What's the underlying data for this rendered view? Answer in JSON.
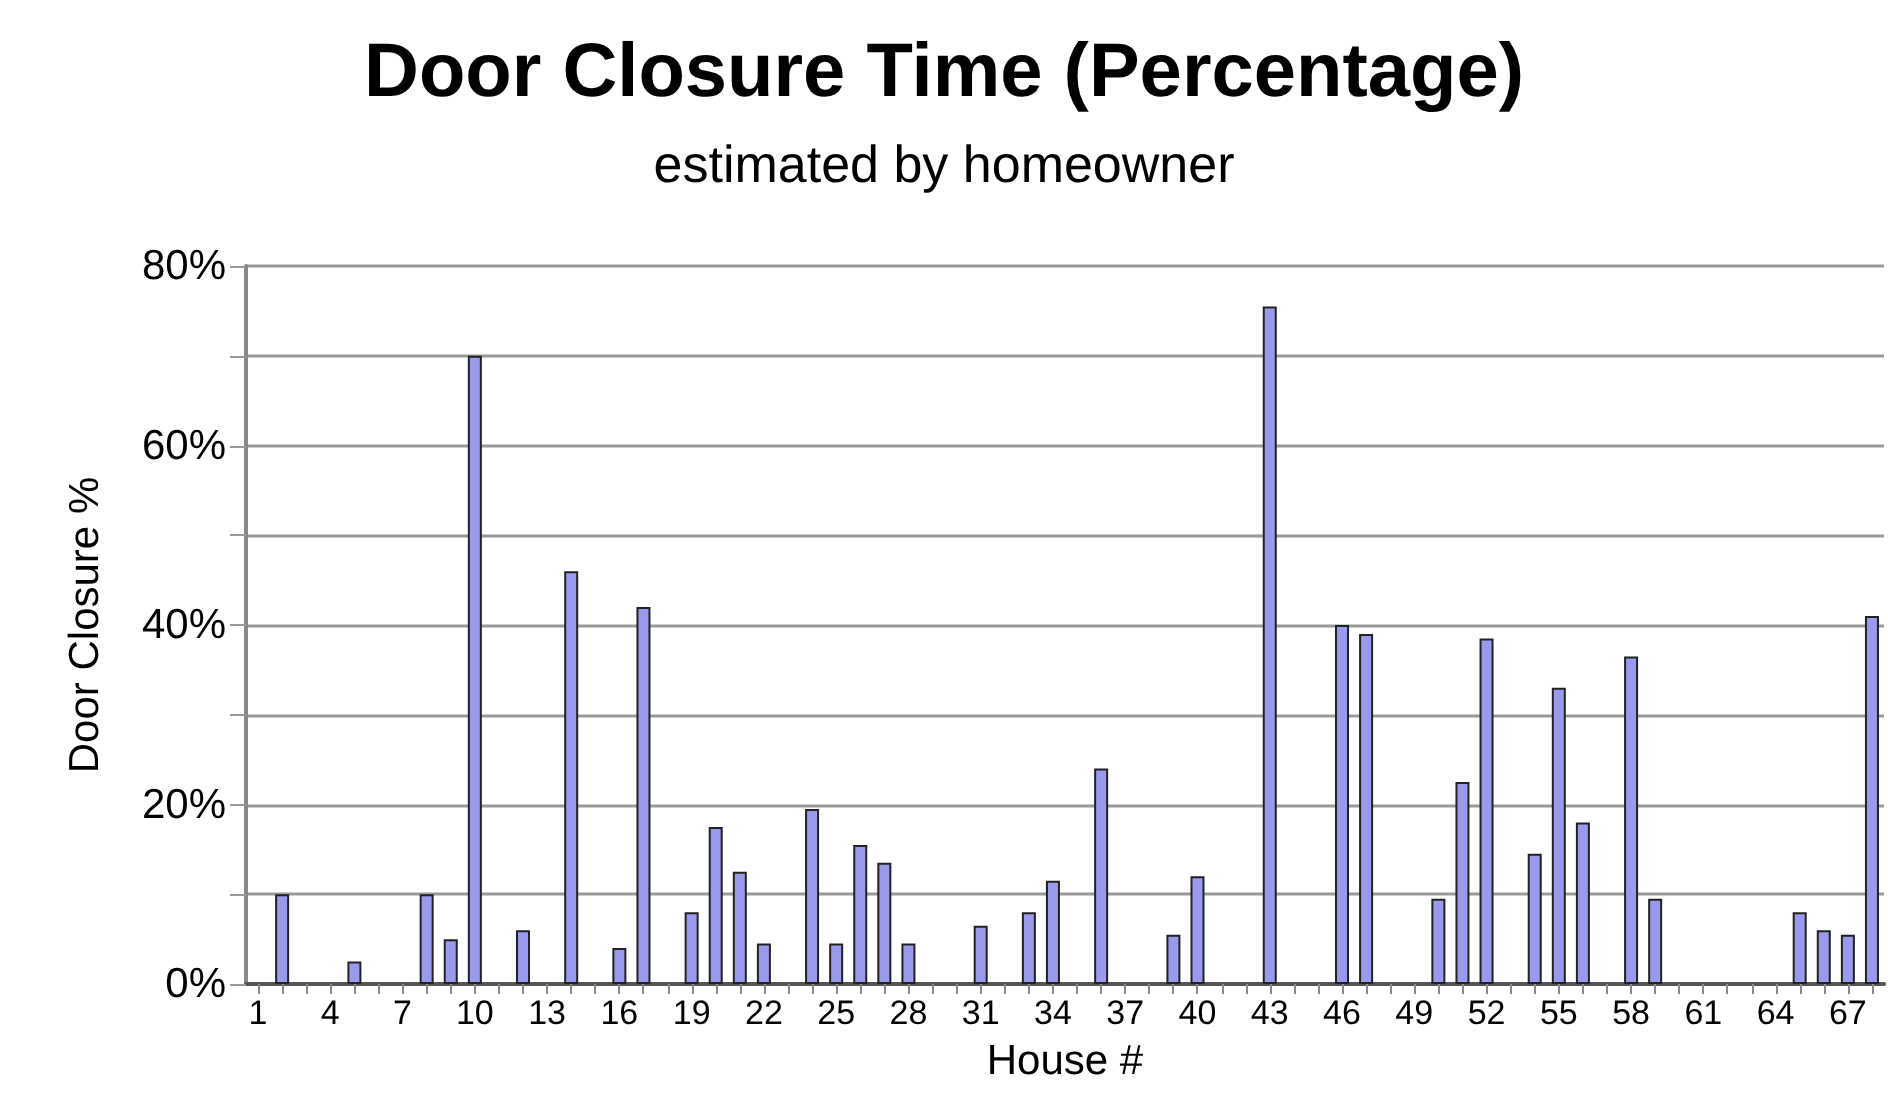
{
  "chart_data": {
    "type": "bar",
    "title": "Door Closure Time (Percentage)",
    "subtitle": "estimated by homeowner",
    "xlabel": "House #",
    "ylabel": "Door Closure %",
    "categories": [
      "1",
      null,
      null,
      "4",
      null,
      null,
      "7",
      null,
      null,
      "10",
      null,
      null,
      "13",
      null,
      null,
      "16",
      null,
      null,
      "19",
      null,
      null,
      "22",
      null,
      null,
      "25",
      null,
      null,
      "28",
      null,
      null,
      "31",
      null,
      null,
      "34",
      null,
      null,
      "37",
      null,
      null,
      "40",
      null,
      null,
      "43",
      null,
      null,
      "46",
      null,
      null,
      "49",
      null,
      null,
      "52",
      null,
      null,
      "55",
      null,
      null,
      "58",
      null,
      null,
      "61",
      null,
      null,
      "64",
      null,
      null,
      "67",
      null
    ],
    "values": [
      null,
      10,
      null,
      null,
      2.5,
      null,
      null,
      10,
      5,
      70,
      null,
      6,
      null,
      46,
      null,
      4,
      42,
      null,
      8,
      17.5,
      12.5,
      4.5,
      null,
      19.5,
      4.5,
      15.5,
      13.5,
      4.5,
      null,
      null,
      6.5,
      null,
      8,
      11.5,
      null,
      24,
      null,
      null,
      5.5,
      12,
      null,
      null,
      75.5,
      null,
      null,
      40,
      39,
      null,
      null,
      9.5,
      22.5,
      38.5,
      null,
      14.5,
      33,
      18,
      null,
      36.5,
      9.5,
      null,
      null,
      null,
      null,
      null,
      8,
      6,
      5.5,
      41
    ],
    "color": "#9999ee",
    "ylim": [
      0,
      80
    ],
    "yticks": [
      {
        "value": 0,
        "label": "0%"
      },
      {
        "value": 10,
        "label": null
      },
      {
        "value": 20,
        "label": "20%"
      },
      {
        "value": 30,
        "label": null
      },
      {
        "value": 40,
        "label": "40%"
      },
      {
        "value": 50,
        "label": null
      },
      {
        "value": 60,
        "label": "60%"
      },
      {
        "value": 70,
        "label": null
      },
      {
        "value": 80,
        "label": "80%"
      }
    ],
    "grid": "y"
  }
}
